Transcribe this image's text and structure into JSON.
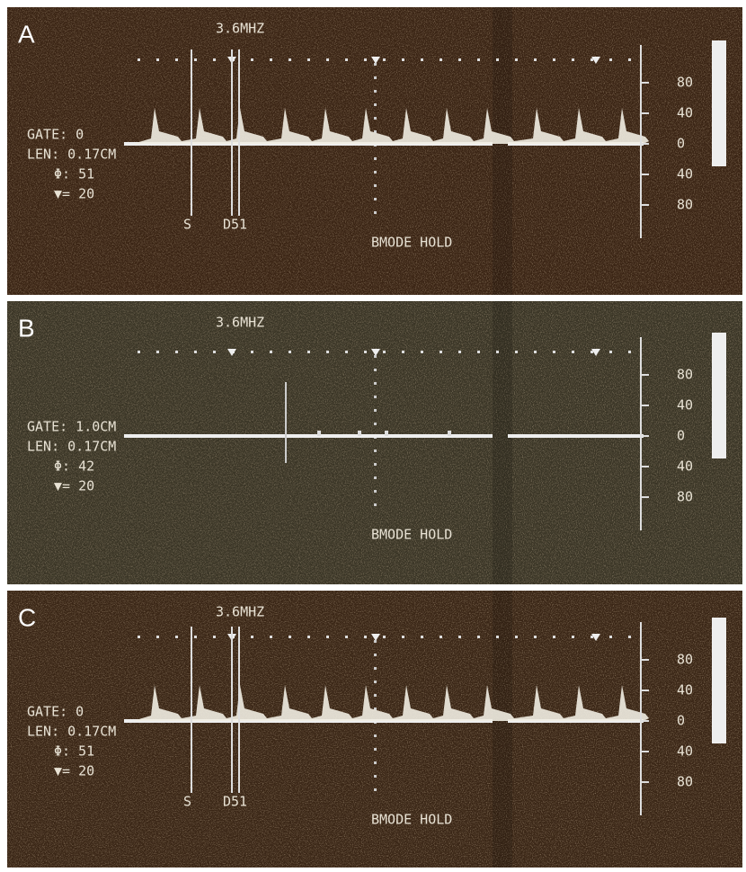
{
  "panels": [
    {
      "label": "A",
      "frequency": "3.6MHZ",
      "gate": "GATE: 0",
      "length": "LEN: 0.17CM",
      "angle": "Φ: 51",
      "marker": "▼= 20",
      "scale": [
        "80",
        "40",
        "0",
        "40",
        "80"
      ],
      "gate_labels": [
        "S",
        "D51"
      ],
      "mode": "BMODE HOLD"
    },
    {
      "label": "B",
      "frequency": "3.6MHZ",
      "gate": "GATE: 1.0CM",
      "length": "LEN: 0.17CM",
      "angle": "Φ: 42",
      "marker": "▼= 20",
      "scale": [
        "80",
        "40",
        "0",
        "40",
        "80"
      ],
      "mode": "BMODE HOLD"
    },
    {
      "label": "C",
      "frequency": "3.6MHZ",
      "gate": "GATE: 0",
      "length": "LEN: 0.17CM",
      "angle": "Φ: 51",
      "marker": "▼= 20",
      "scale": [
        "80",
        "40",
        "0",
        "40",
        "80"
      ],
      "gate_labels": [
        "S",
        "D51"
      ],
      "mode": "BMODE HOLD"
    }
  ]
}
